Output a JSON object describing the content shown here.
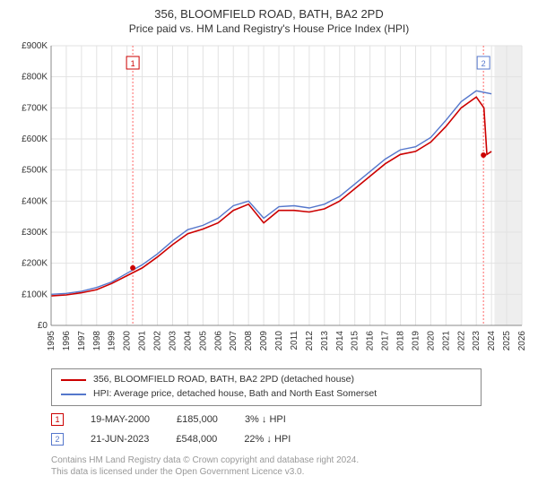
{
  "title": "356, BLOOMFIELD ROAD, BATH, BA2 2PD",
  "subtitle": "Price paid vs. HM Land Registry's House Price Index (HPI)",
  "chart": {
    "type": "line",
    "background_color": "#ffffff",
    "plot_background_end": "#f4f4f4",
    "grid_color": "#e2e2e2",
    "x_start": 1995,
    "x_end": 2026,
    "x_tick_step": 1,
    "ylim": [
      0,
      900000
    ],
    "ytick_step": 100000,
    "ytick_prefix": "£",
    "ytick_suffix": "K",
    "y_label_fontsize": 10,
    "x_label_fontsize": 10,
    "axis_color": "#888888",
    "today_year": 2024.2,
    "future_shade_color": "#eeeeee",
    "marker_vline_color": "#ff6666",
    "marker_vline_dash": "2,2",
    "series_red": {
      "color": "#cc0000",
      "width": 1.6,
      "points": [
        [
          1995,
          95000
        ],
        [
          1996,
          98000
        ],
        [
          1997,
          105000
        ],
        [
          1998,
          115000
        ],
        [
          1999,
          135000
        ],
        [
          2000,
          160000
        ],
        [
          2001,
          185000
        ],
        [
          2002,
          220000
        ],
        [
          2003,
          260000
        ],
        [
          2004,
          295000
        ],
        [
          2005,
          310000
        ],
        [
          2006,
          330000
        ],
        [
          2007,
          370000
        ],
        [
          2008,
          390000
        ],
        [
          2009,
          330000
        ],
        [
          2010,
          370000
        ],
        [
          2011,
          370000
        ],
        [
          2012,
          365000
        ],
        [
          2013,
          375000
        ],
        [
          2014,
          400000
        ],
        [
          2015,
          440000
        ],
        [
          2016,
          480000
        ],
        [
          2017,
          520000
        ],
        [
          2018,
          550000
        ],
        [
          2019,
          560000
        ],
        [
          2020,
          590000
        ],
        [
          2021,
          640000
        ],
        [
          2022,
          700000
        ],
        [
          2023,
          735000
        ],
        [
          2023.5,
          700000
        ],
        [
          2023.7,
          550000
        ],
        [
          2024.0,
          560000
        ]
      ]
    },
    "series_blue": {
      "color": "#5577cc",
      "width": 1.4,
      "points": [
        [
          1995,
          100000
        ],
        [
          1996,
          103000
        ],
        [
          1997,
          110000
        ],
        [
          1998,
          122000
        ],
        [
          1999,
          140000
        ],
        [
          2000,
          168000
        ],
        [
          2001,
          195000
        ],
        [
          2002,
          230000
        ],
        [
          2003,
          272000
        ],
        [
          2004,
          308000
        ],
        [
          2005,
          322000
        ],
        [
          2006,
          345000
        ],
        [
          2007,
          385000
        ],
        [
          2008,
          400000
        ],
        [
          2009,
          345000
        ],
        [
          2010,
          382000
        ],
        [
          2011,
          385000
        ],
        [
          2012,
          378000
        ],
        [
          2013,
          390000
        ],
        [
          2014,
          415000
        ],
        [
          2015,
          455000
        ],
        [
          2016,
          495000
        ],
        [
          2017,
          535000
        ],
        [
          2018,
          565000
        ],
        [
          2019,
          575000
        ],
        [
          2020,
          605000
        ],
        [
          2021,
          660000
        ],
        [
          2022,
          720000
        ],
        [
          2023,
          755000
        ],
        [
          2024.0,
          745000
        ]
      ]
    },
    "sale_markers": [
      {
        "n": "1",
        "year": 2000.38,
        "color": "#cc0000"
      },
      {
        "n": "2",
        "year": 2023.47,
        "color": "#5577cc"
      }
    ]
  },
  "legend": {
    "items": [
      {
        "color": "#cc0000",
        "label": "356, BLOOMFIELD ROAD, BATH, BA2 2PD (detached house)"
      },
      {
        "color": "#5577cc",
        "label": "HPI: Average price, detached house, Bath and North East Somerset"
      }
    ]
  },
  "sales": [
    {
      "n": "1",
      "border": "#cc0000",
      "date": "19-MAY-2000",
      "price": "£185,000",
      "pct": "3%",
      "arrow": "↓",
      "suffix": "HPI"
    },
    {
      "n": "2",
      "border": "#5577cc",
      "date": "21-JUN-2023",
      "price": "£548,000",
      "pct": "22%",
      "arrow": "↓",
      "suffix": "HPI"
    }
  ],
  "footer": {
    "line1": "Contains HM Land Registry data © Crown copyright and database right 2024.",
    "line2": "This data is licensed under the Open Government Licence v3.0."
  }
}
